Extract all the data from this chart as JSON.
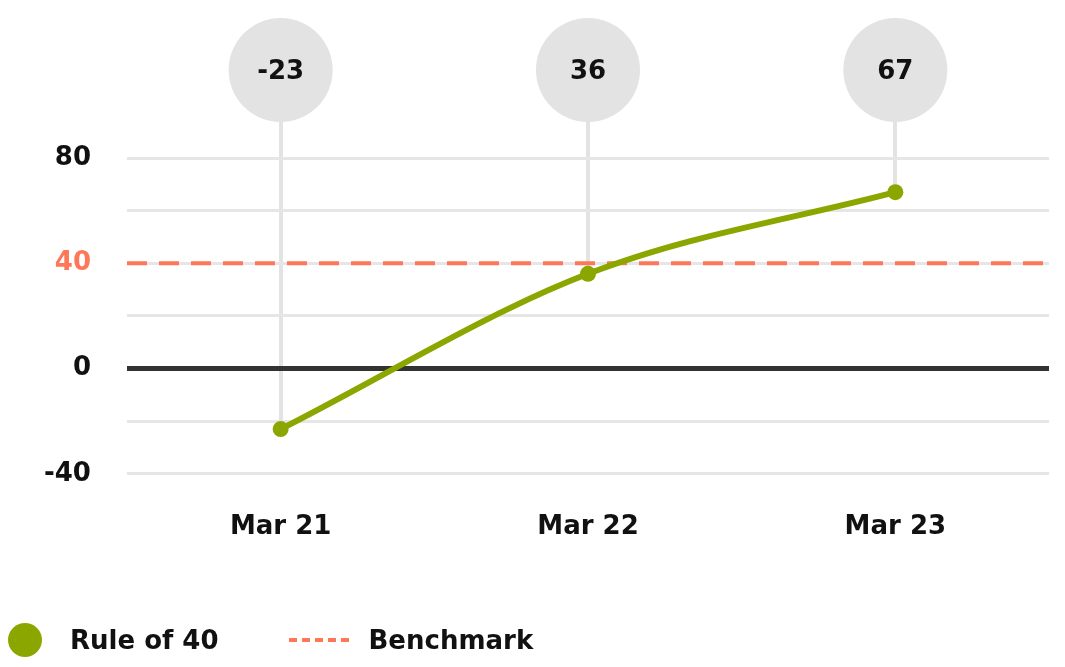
{
  "chart_data": {
    "type": "line",
    "categories": [
      "Mar 21",
      "Mar 22",
      "Mar 23"
    ],
    "series": [
      {
        "name": "Rule of 40",
        "color": "#8ca600",
        "values": [
          -23,
          36,
          67
        ]
      }
    ],
    "ylim": [
      -40,
      80
    ],
    "yticks": [
      -40,
      {
        "value": -20,
        "label": null
      },
      0,
      {
        "value": 20,
        "label": null
      },
      40,
      {
        "value": 60,
        "label": null
      },
      80
    ],
    "ref_lines": [
      {
        "axis": "y",
        "value": 40,
        "label": "Benchmark",
        "color": "#ff7759",
        "line_style": "dashed"
      }
    ],
    "grid": "y",
    "marker": "circle",
    "line_style": "solid",
    "data_labels": true,
    "legend": "bottom left"
  }
}
